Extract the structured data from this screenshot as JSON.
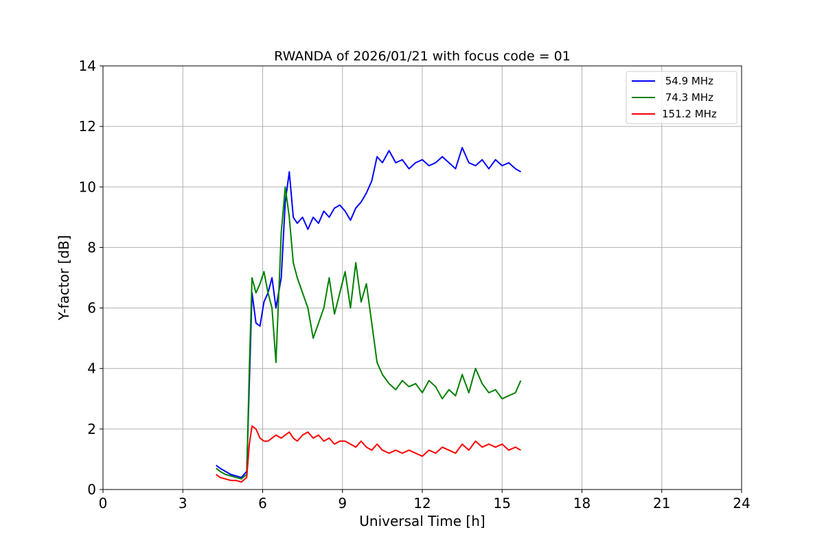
{
  "chart_data": {
    "type": "line",
    "title": "RWANDA of 2026/01/21 with focus code = 01",
    "xlabel": "Universal Time [h]",
    "ylabel": "Y-factor [dB]",
    "xlim": [
      0,
      24
    ],
    "ylim": [
      0,
      14
    ],
    "xticks": [
      0,
      3,
      6,
      9,
      12,
      15,
      18,
      21,
      24
    ],
    "yticks": [
      0,
      2,
      4,
      6,
      8,
      10,
      12,
      14
    ],
    "grid": true,
    "legend_position": "top-right",
    "series": [
      {
        "name": " 54.9 MHz",
        "color": "#0000ff",
        "x": [
          4.25,
          4.4,
          4.6,
          4.8,
          5.0,
          5.2,
          5.4,
          5.5,
          5.6,
          5.75,
          5.9,
          6.05,
          6.2,
          6.35,
          6.5,
          6.7,
          6.85,
          7.0,
          7.15,
          7.3,
          7.5,
          7.7,
          7.9,
          8.1,
          8.3,
          8.5,
          8.7,
          8.9,
          9.1,
          9.3,
          9.5,
          9.7,
          9.9,
          10.1,
          10.3,
          10.5,
          10.75,
          11.0,
          11.25,
          11.5,
          11.75,
          12.0,
          12.25,
          12.5,
          12.75,
          13.0,
          13.25,
          13.5,
          13.75,
          14.0,
          14.25,
          14.5,
          14.75,
          15.0,
          15.25,
          15.5,
          15.7
        ],
        "y": [
          0.8,
          0.7,
          0.6,
          0.5,
          0.45,
          0.4,
          0.6,
          3.5,
          6.5,
          5.5,
          5.4,
          6.2,
          6.5,
          7.0,
          6.0,
          7.0,
          9.5,
          10.5,
          9.0,
          8.8,
          9.0,
          8.6,
          9.0,
          8.8,
          9.2,
          9.0,
          9.3,
          9.4,
          9.2,
          8.9,
          9.3,
          9.5,
          9.8,
          10.2,
          11.0,
          10.8,
          11.2,
          10.8,
          10.9,
          10.6,
          10.8,
          10.9,
          10.7,
          10.8,
          11.0,
          10.8,
          10.6,
          11.3,
          10.8,
          10.7,
          10.9,
          10.6,
          10.9,
          10.7,
          10.8,
          10.6,
          10.5
        ]
      },
      {
        "name": " 74.3 MHz",
        "color": "#008000",
        "x": [
          4.25,
          4.4,
          4.6,
          4.8,
          5.0,
          5.2,
          5.4,
          5.5,
          5.6,
          5.75,
          5.9,
          6.05,
          6.2,
          6.35,
          6.5,
          6.7,
          6.85,
          7.0,
          7.15,
          7.3,
          7.5,
          7.7,
          7.9,
          8.1,
          8.3,
          8.5,
          8.7,
          8.9,
          9.1,
          9.3,
          9.5,
          9.7,
          9.9,
          10.1,
          10.3,
          10.5,
          10.75,
          11.0,
          11.25,
          11.5,
          11.75,
          12.0,
          12.25,
          12.5,
          12.75,
          13.0,
          13.25,
          13.5,
          13.75,
          14.0,
          14.25,
          14.5,
          14.75,
          15.0,
          15.25,
          15.5,
          15.7
        ],
        "y": [
          0.7,
          0.6,
          0.5,
          0.45,
          0.4,
          0.35,
          0.5,
          4.0,
          7.0,
          6.5,
          6.8,
          7.2,
          6.5,
          6.0,
          4.2,
          8.5,
          10.0,
          9.0,
          7.5,
          7.0,
          6.5,
          6.0,
          5.0,
          5.5,
          6.0,
          7.0,
          5.8,
          6.5,
          7.2,
          6.0,
          7.5,
          6.2,
          6.8,
          5.5,
          4.2,
          3.8,
          3.5,
          3.3,
          3.6,
          3.4,
          3.5,
          3.2,
          3.6,
          3.4,
          3.0,
          3.3,
          3.1,
          3.8,
          3.2,
          4.0,
          3.5,
          3.2,
          3.3,
          3.0,
          3.1,
          3.2,
          3.6
        ]
      },
      {
        "name": "151.2 MHz",
        "color": "#ff0000",
        "x": [
          4.25,
          4.4,
          4.6,
          4.8,
          5.0,
          5.2,
          5.4,
          5.5,
          5.6,
          5.75,
          5.9,
          6.05,
          6.2,
          6.35,
          6.5,
          6.7,
          6.85,
          7.0,
          7.15,
          7.3,
          7.5,
          7.7,
          7.9,
          8.1,
          8.3,
          8.5,
          8.7,
          8.9,
          9.1,
          9.3,
          9.5,
          9.7,
          9.9,
          10.1,
          10.3,
          10.5,
          10.75,
          11.0,
          11.25,
          11.5,
          11.75,
          12.0,
          12.25,
          12.5,
          12.75,
          13.0,
          13.25,
          13.5,
          13.75,
          14.0,
          14.25,
          14.5,
          14.75,
          15.0,
          15.25,
          15.5,
          15.7
        ],
        "y": [
          0.5,
          0.4,
          0.35,
          0.3,
          0.3,
          0.25,
          0.4,
          1.5,
          2.1,
          2.0,
          1.7,
          1.6,
          1.6,
          1.7,
          1.8,
          1.7,
          1.8,
          1.9,
          1.7,
          1.6,
          1.8,
          1.9,
          1.7,
          1.8,
          1.6,
          1.7,
          1.5,
          1.6,
          1.6,
          1.5,
          1.4,
          1.6,
          1.4,
          1.3,
          1.5,
          1.3,
          1.2,
          1.3,
          1.2,
          1.3,
          1.2,
          1.1,
          1.3,
          1.2,
          1.4,
          1.3,
          1.2,
          1.5,
          1.3,
          1.6,
          1.4,
          1.5,
          1.4,
          1.5,
          1.3,
          1.4,
          1.3
        ]
      }
    ]
  }
}
